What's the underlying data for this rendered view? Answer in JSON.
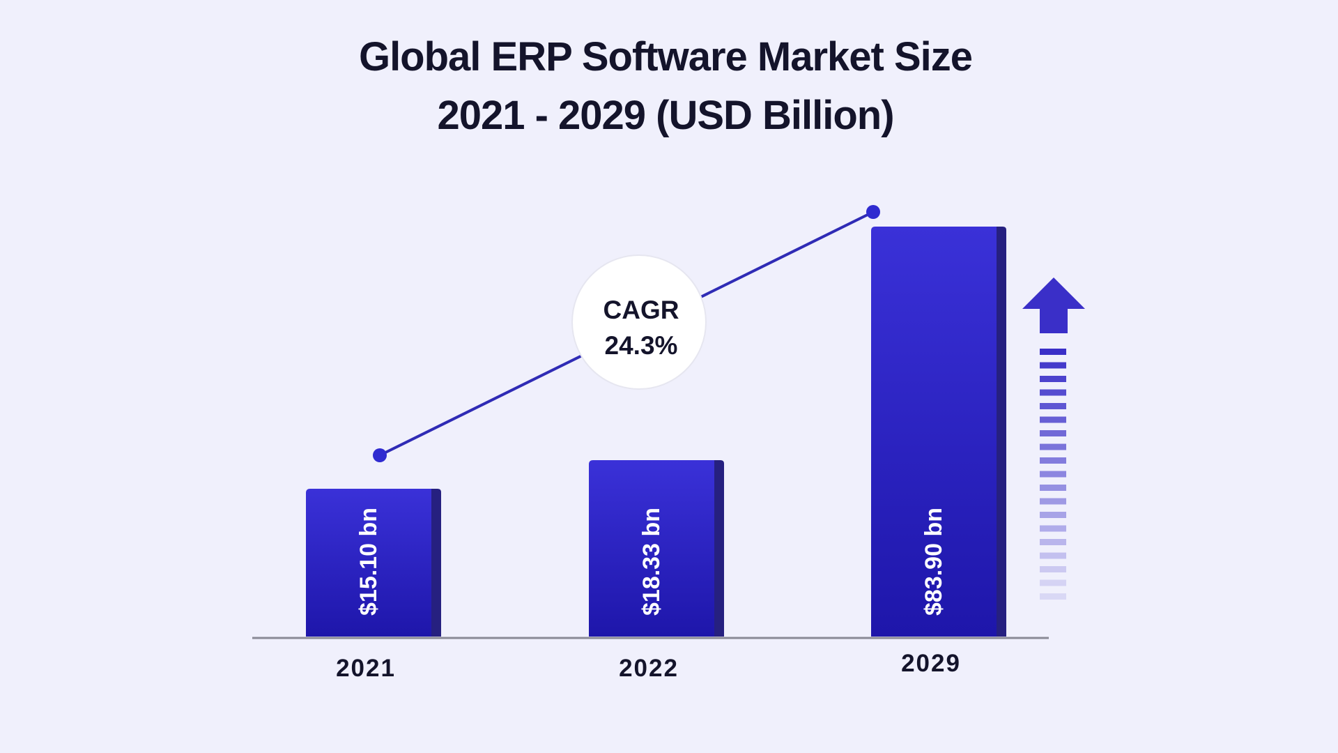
{
  "chart_data": {
    "type": "bar",
    "title": [
      "Global ERP Software Market Size",
      "2021 - 2029 (USD Billion)"
    ],
    "categories": [
      "2021",
      "2022",
      "2029"
    ],
    "values": [
      15.1,
      18.33,
      83.9
    ],
    "value_labels": [
      "$15.10 bn",
      "$18.33 bn",
      "$83.90 bn"
    ],
    "annotation": {
      "label": "CAGR",
      "value": "24.3%"
    },
    "trend_line": true,
    "growth_arrow": true,
    "grid": false,
    "legend": "none"
  },
  "colors": {
    "background": "#f0f0fc",
    "bar_top": "#3a31d8",
    "bar_bottom": "#1e16aa",
    "bar_side": "#262080",
    "line": "#2f2bb5",
    "dot": "#2f2bd0",
    "arrow": "#3a2fc8",
    "axis": "#8a8a96",
    "text": "#14142b"
  }
}
